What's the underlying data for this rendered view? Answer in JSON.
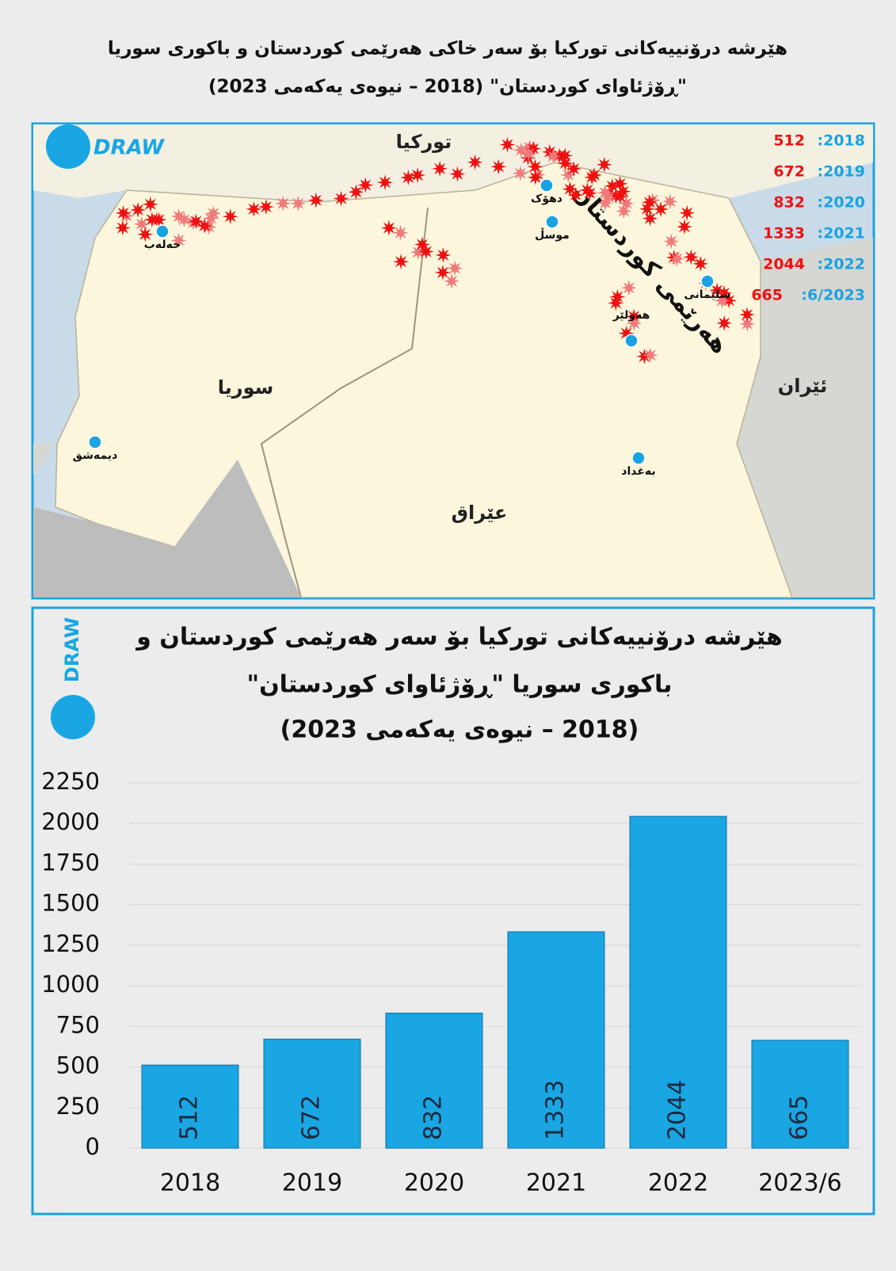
{
  "title": [
    "هێرشە درۆنییەکانی تورکیا بۆ سەر خاکی هەرێمی کوردستان و باکوری سوریا",
    "\"ڕۆژئاوای کوردستان\" (2018 – نیوەی یەکەمی 2023)"
  ],
  "logo": "DRAW",
  "map": {
    "countries": [
      "توركیا",
      "سوریا",
      "عێراق",
      "ئێران"
    ],
    "cities": [
      "دهۆک",
      "موسڵ",
      "حەلەب",
      "سلێمانی",
      "هەولێر",
      "بەغداد",
      "دیمەشق"
    ],
    "region": "هەرێمی کوردستان",
    "legend": [
      {
        "label": ":2018",
        "value": 512
      },
      {
        "label": ":2019",
        "value": 672
      },
      {
        "label": ":2020",
        "value": 832
      },
      {
        "label": ":2021",
        "value": 1333
      },
      {
        "label": ":2022",
        "value": 2044
      },
      {
        "label": ":6/2023",
        "value": 665
      }
    ]
  },
  "chart_data": {
    "type": "bar",
    "title": [
      "هێرشە درۆنییەکانی تورکیا بۆ سەر هەرێمی کوردستان و",
      "باکوری سوریا \"ڕۆژئاوای کوردستان\"",
      "(2018 – نیوەی یەکەمی 2023)"
    ],
    "categories": [
      "2018",
      "2019",
      "2020",
      "2021",
      "2022",
      "2023/6"
    ],
    "values": [
      512,
      672,
      832,
      1333,
      2044,
      665
    ],
    "color": "#19a6e3",
    "ylim": [
      0,
      2250
    ],
    "yticks": [
      0,
      250,
      500,
      750,
      1000,
      1250,
      1500,
      1750,
      2000,
      2250
    ],
    "grid": true
  }
}
